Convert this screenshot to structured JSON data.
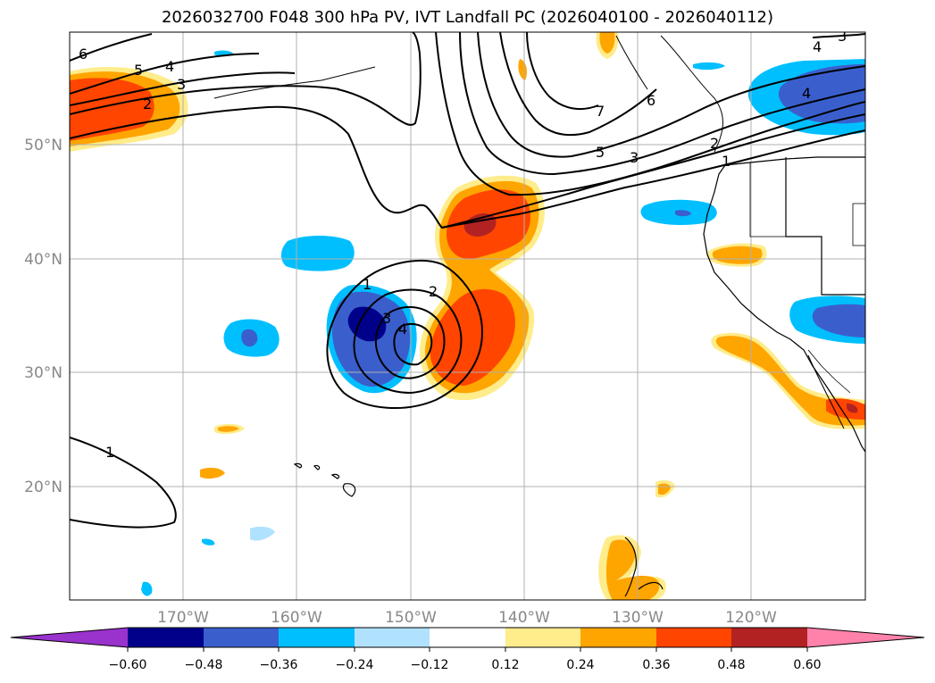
{
  "title": "2026032700 F048 300 hPa PV, IVT Landfall PC (2026040100 - 2026040112)",
  "map": {
    "lon_labels": [
      "170°W",
      "160°W",
      "150°W",
      "140°W",
      "130°W",
      "120°W"
    ],
    "lat_labels": [
      "50°N",
      "40°N",
      "30°N",
      "20°N"
    ],
    "contour_labels": [
      "6",
      "5",
      "4",
      "3",
      "2",
      "4",
      "3",
      "4",
      "5",
      "3",
      "7",
      "6",
      "2",
      "1",
      "1",
      "2",
      "3",
      "4",
      "1"
    ]
  },
  "colorbar": {
    "tick_labels": [
      "−0.60",
      "−0.48",
      "−0.36",
      "−0.24",
      "−0.12",
      "0.12",
      "0.24",
      "0.36",
      "0.48",
      "0.60"
    ],
    "colors": [
      "#9a32cd",
      "#00008b",
      "#3a5fcd",
      "#00bfff",
      "#b0e2ff",
      "#ffffff",
      "#ffec8b",
      "#ffa500",
      "#ff4500",
      "#b22222",
      "#ff82ab"
    ]
  }
}
